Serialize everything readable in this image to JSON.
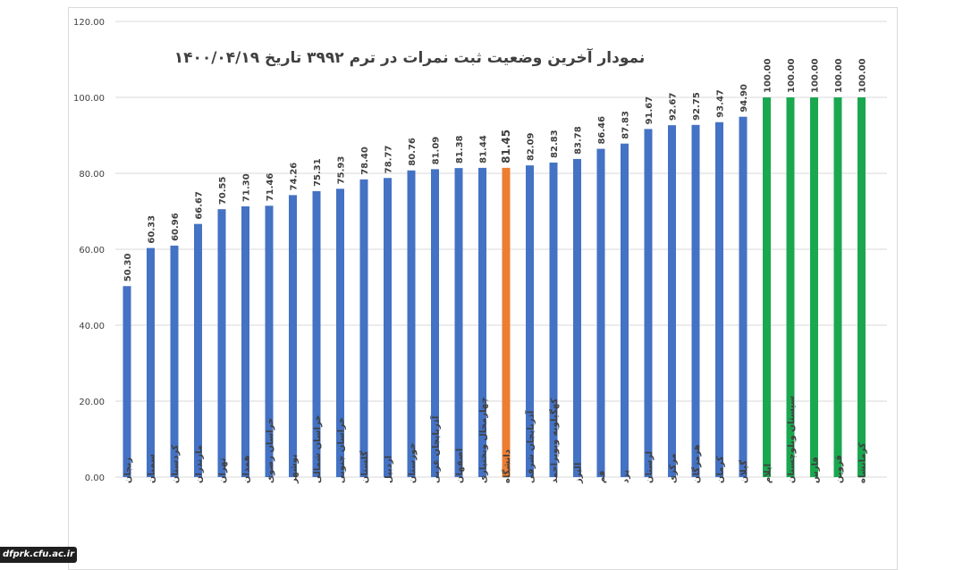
{
  "chart_data": {
    "type": "bar",
    "title": "نمودار آخرین وضعیت ثبت نمرات  در ترم ۳۹۹۲ تاریخ ۱۴۰۰/۰۴/۱۹",
    "xlabel": "",
    "ylabel": "",
    "ylim": [
      0,
      120
    ],
    "yticks": [
      "0.00",
      "20.00",
      "40.00",
      "60.00",
      "80.00",
      "100.00",
      "120.00"
    ],
    "grid": true,
    "legend": "none",
    "categories": [
      "زنجان",
      "سمنان",
      "کردستان",
      "مازندران",
      "تهران",
      "همدان",
      "خراسان رضوی",
      "بوشهر",
      "خراسان شمالی",
      "خراسان جنوبی",
      "گلستان",
      "اردبیل",
      "خوزستان",
      "آذربایجان غربی",
      "اصفهان",
      "چهارمحال وبختیاری",
      "دانشگاه",
      "آذربایجان شرقی",
      "کهگیلویه وبویراحمد",
      "البرز",
      "قم",
      "یزد",
      "لرستان",
      "مرکزی",
      "هرمزگان",
      "کرمان",
      "گیلان",
      "ایلام",
      "سیستان وبلوچستان",
      "فارس",
      "قزوین",
      "کرمانشاه"
    ],
    "values": [
      50.3,
      60.33,
      60.96,
      66.67,
      70.55,
      71.3,
      71.46,
      74.26,
      75.31,
      75.93,
      78.4,
      78.77,
      80.76,
      81.09,
      81.38,
      81.44,
      81.45,
      82.09,
      82.83,
      83.78,
      86.46,
      87.83,
      91.67,
      92.67,
      92.75,
      93.47,
      94.9,
      100.0,
      100.0,
      100.0,
      100.0,
      100.0
    ],
    "labels": [
      "50.30",
      "60.33",
      "60.96",
      "66.67",
      "70.55",
      "71.30",
      "71.46",
      "74.26",
      "75.31",
      "75.93",
      "78.40",
      "78.77",
      "80.76",
      "81.09",
      "81.38",
      "81.44",
      "81.45",
      "82.09",
      "82.83",
      "83.78",
      "86.46",
      "87.83",
      "91.67",
      "92.67",
      "92.75",
      "93.47",
      "94.90",
      "100.00",
      "100.00",
      "100.00",
      "100.00",
      "100.00"
    ],
    "colors": {
      "default": "#4472c4",
      "highlight": "#ed7d31",
      "complete": "#1aa84f",
      "grid": "#d9d9d9",
      "text": "#404040"
    }
  },
  "watermark": "dfprk.cfu.ac.ir"
}
